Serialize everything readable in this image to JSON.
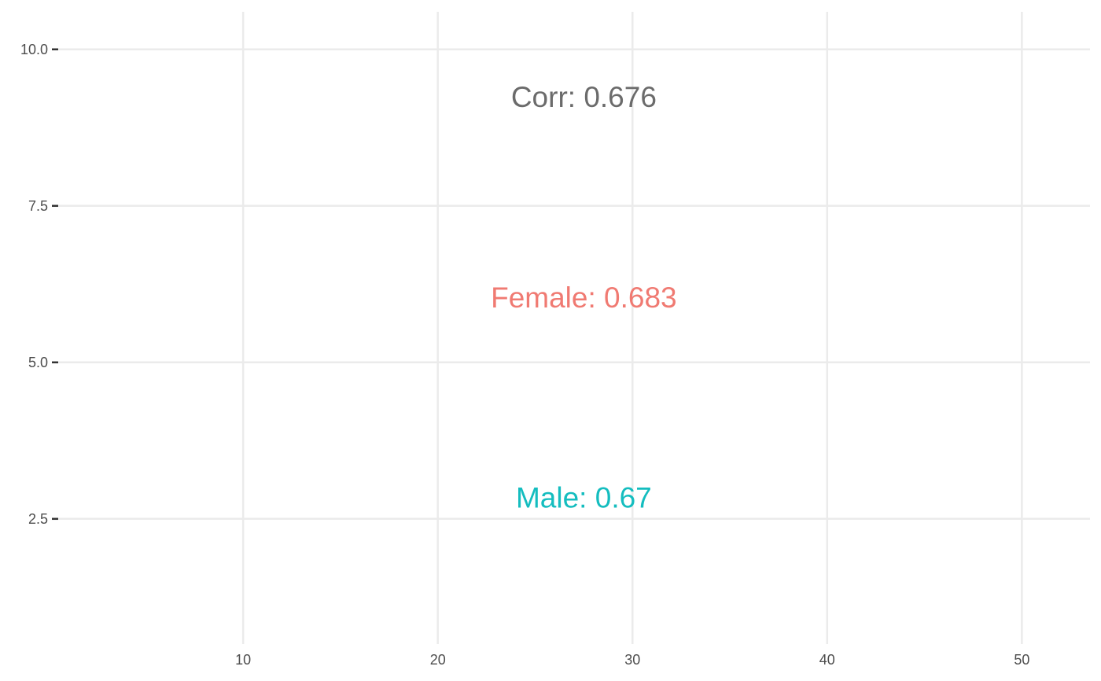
{
  "chart_data": {
    "type": "table",
    "title": "",
    "xlabel": "",
    "ylabel": "",
    "xlim": [
      0.5,
      53.5
    ],
    "ylim": [
      0.5,
      10.6
    ],
    "x_ticks": [
      10,
      20,
      30,
      40,
      50
    ],
    "y_ticks": [
      2.5,
      5.0,
      7.5,
      10.0
    ],
    "x_tick_labels": [
      "10",
      "20",
      "30",
      "40",
      "50"
    ],
    "y_tick_labels": [
      "2.5",
      "5.0",
      "7.5",
      "10.0"
    ],
    "grid": true,
    "annotations": [
      {
        "label": "Corr: 0.676",
        "x": 27.5,
        "y": 9.2,
        "color": "#6b6b6b"
      },
      {
        "label": "Female: 0.683",
        "x": 27.5,
        "y": 6.0,
        "color": "#f07a72"
      },
      {
        "label": "Male: 0.67",
        "x": 27.5,
        "y": 2.8,
        "color": "#14bdbf"
      }
    ]
  }
}
